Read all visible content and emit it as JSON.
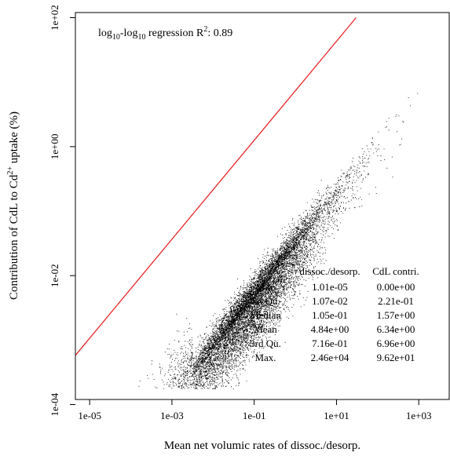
{
  "chart_data": {
    "type": "scatter",
    "xlabel": "Mean net volumic rates of dissoc./desorp.",
    "ylabel": {
      "prefix": "Contribution of CdL to Cd",
      "sup": "2+",
      "suffix": " uptake (%)"
    },
    "x_scale": "log10",
    "y_scale": "log10",
    "xlim": [
      4.5e-06,
      5500
    ],
    "ylim": [
      0.00012,
      120
    ],
    "x_ticks": [
      1e-05,
      0.001,
      0.1,
      10,
      1000
    ],
    "x_tick_labels": [
      "1e-05",
      "1e-03",
      "1e-01",
      "1e+01",
      "1e+03"
    ],
    "y_ticks": [
      0.0001,
      0.01,
      1,
      100
    ],
    "y_tick_labels": [
      "1e-04",
      "1e-02",
      "1e+00",
      "1e+02"
    ],
    "grid": false,
    "point_color": "#000000",
    "regression_line": {
      "color": "#e8262a",
      "points": [
        [
          4.5e-06,
          0.00058
        ],
        [
          30,
          100
        ]
      ]
    },
    "annotation": {
      "prefix": "log",
      "sub": "10",
      "mid": "-log",
      "sub2": "10",
      "text": " regression R",
      "sup": "2",
      "value": ": 0.89"
    },
    "summary_table": {
      "columns": [
        "dissoc./desorp.",
        "CdL contri."
      ],
      "rows": [
        {
          "stat": "Min.",
          "values": [
            "1.01e-05",
            "0.00e+00"
          ]
        },
        {
          "stat": "1st Qu.",
          "values": [
            "1.07e-02",
            "2.21e-01"
          ]
        },
        {
          "stat": "Median",
          "values": [
            "1.05e-01",
            "1.57e+00"
          ]
        },
        {
          "stat": "Mean",
          "values": [
            "4.84e+00",
            "6.34e+00"
          ]
        },
        {
          "stat": "3rd Qu.",
          "values": [
            "7.16e-01",
            "6.96e+00"
          ]
        },
        {
          "stat": "Max.",
          "values": [
            "2.46e+04",
            "9.62e+01"
          ]
        }
      ]
    }
  }
}
